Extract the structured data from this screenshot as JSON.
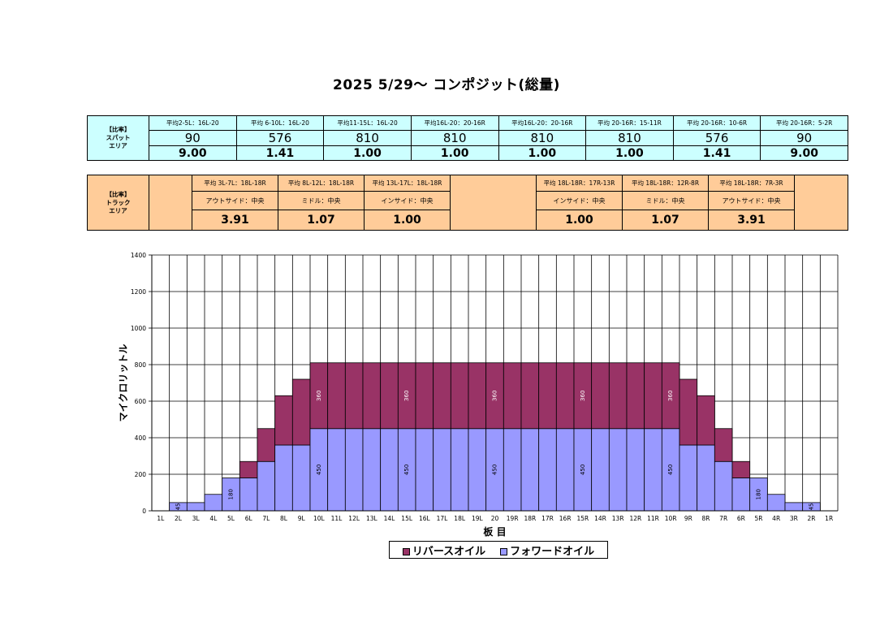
{
  "title": "2025 5/29～ コンポジット(総量)",
  "spot": {
    "label_lines": [
      "【比率】",
      "スパット",
      "エリア"
    ],
    "headers": [
      "平均2-5L：16L-20",
      "平均 6-10L：16L-20",
      "平均11-15L：16L-20",
      "平均16L-20：20-16R",
      "平均16L-20：20-16R",
      "平均 20-16R：15-11R",
      "平均 20-16R：10-6R",
      "平均 20-16R：5-2R"
    ],
    "volumes": [
      "90",
      "576",
      "810",
      "810",
      "810",
      "810",
      "576",
      "90"
    ],
    "ratios": [
      "9.00",
      "1.41",
      "1.00",
      "1.00",
      "1.00",
      "1.00",
      "1.41",
      "9.00"
    ]
  },
  "track": {
    "label_lines": [
      "【比率】",
      "トラック",
      "エリア"
    ],
    "left": [
      {
        "header": "平均 3L-7L：18L-18R",
        "zone": "アウトサイド：中央",
        "ratio": "3.91"
      },
      {
        "header": "平均 8L-12L：18L-18R",
        "zone": "ミドル：中央",
        "ratio": "1.07"
      },
      {
        "header": "平均 13L-17L：18L-18R",
        "zone": "インサイド：中央",
        "ratio": "1.00"
      }
    ],
    "right": [
      {
        "header": "平均 18L-18R：17R-13R",
        "zone": "インサイド：中央",
        "ratio": "1.00"
      },
      {
        "header": "平均 18L-18R：12R-8R",
        "zone": "ミドル：中央",
        "ratio": "1.07"
      },
      {
        "header": "平均 18L-18R：7R-3R",
        "zone": "アウトサイド：中央",
        "ratio": "3.91"
      }
    ]
  },
  "chart_data": {
    "type": "bar",
    "stacked": true,
    "xlabel": "板 目",
    "ylabel": "マイクロリットル",
    "ylim": [
      0,
      1400
    ],
    "yticks": [
      0,
      200,
      400,
      600,
      800,
      1000,
      1200,
      1400
    ],
    "categories": [
      "1L",
      "2L",
      "3L",
      "4L",
      "5L",
      "6L",
      "7L",
      "8L",
      "9L",
      "10L",
      "11L",
      "12L",
      "13L",
      "14L",
      "15L",
      "16L",
      "17L",
      "18L",
      "19L",
      "20",
      "19R",
      "18R",
      "17R",
      "16R",
      "15R",
      "14R",
      "13R",
      "12R",
      "11R",
      "10R",
      "9R",
      "8R",
      "7R",
      "6R",
      "5R",
      "4R",
      "3R",
      "2R",
      "1R"
    ],
    "series": [
      {
        "name": "フォワードオイル",
        "color": "#9999ff",
        "values": [
          0,
          45,
          45,
          90,
          180,
          180,
          270,
          360,
          360,
          450,
          450,
          450,
          450,
          450,
          450,
          450,
          450,
          450,
          450,
          450,
          450,
          450,
          450,
          450,
          450,
          450,
          450,
          450,
          450,
          450,
          360,
          360,
          270,
          180,
          180,
          90,
          45,
          45,
          0
        ]
      },
      {
        "name": "リバースオイル",
        "color": "#993366",
        "values": [
          0,
          0,
          0,
          0,
          0,
          90,
          180,
          270,
          360,
          360,
          360,
          360,
          360,
          360,
          360,
          360,
          360,
          360,
          360,
          360,
          360,
          360,
          360,
          360,
          360,
          360,
          360,
          360,
          360,
          360,
          360,
          270,
          180,
          90,
          0,
          0,
          0,
          0,
          0
        ]
      }
    ],
    "data_labels": [
      {
        "series": "フォワードオイル",
        "category": "2L",
        "text": "45"
      },
      {
        "series": "フォワードオイル",
        "category": "5L",
        "text": "180"
      },
      {
        "series": "フォワードオイル",
        "category": "10L",
        "text": "450"
      },
      {
        "series": "フォワードオイル",
        "category": "15L",
        "text": "450"
      },
      {
        "series": "フォワードオイル",
        "category": "20",
        "text": "450"
      },
      {
        "series": "フォワードオイル",
        "category": "15R",
        "text": "450"
      },
      {
        "series": "フォワードオイル",
        "category": "10R",
        "text": "450"
      },
      {
        "series": "フォワードオイル",
        "category": "5R",
        "text": "180"
      },
      {
        "series": "フォワードオイル",
        "category": "2R",
        "text": "45"
      },
      {
        "series": "リバースオイル",
        "category": "10L",
        "text": "360"
      },
      {
        "series": "リバースオイル",
        "category": "15L",
        "text": "360"
      },
      {
        "series": "リバースオイル",
        "category": "20",
        "text": "360"
      },
      {
        "series": "リバースオイル",
        "category": "15R",
        "text": "360"
      },
      {
        "series": "リバースオイル",
        "category": "10R",
        "text": "360"
      }
    ],
    "legend": [
      "リバースオイル",
      "フォワードオイル"
    ]
  }
}
